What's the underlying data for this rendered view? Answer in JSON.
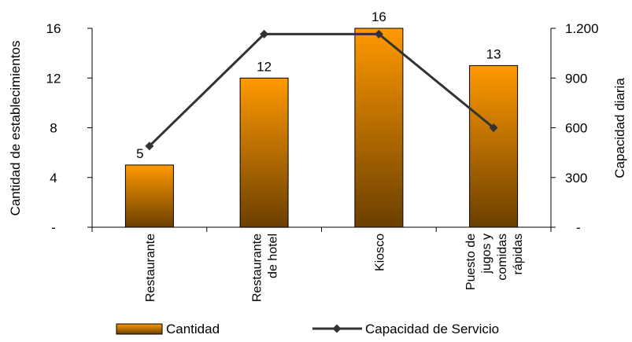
{
  "chart_data": {
    "type": "bar",
    "title": "",
    "categories": [
      [
        "Restaurante"
      ],
      [
        "Restaurante",
        "de hotel"
      ],
      [
        "Kiosco"
      ],
      [
        "Puesto de",
        "jugos y",
        "comidas",
        "rápidas"
      ]
    ],
    "series": [
      {
        "name": "Cantidad",
        "type": "bar",
        "axis": "left",
        "values": [
          5,
          12,
          16,
          13
        ],
        "data_labels": [
          "5",
          "12",
          "16",
          "13"
        ],
        "color_top": "#ff9900",
        "color_bottom": "#6b3f00"
      },
      {
        "name": "Capacidad de Servicio",
        "type": "line",
        "axis": "right",
        "values": [
          490,
          1165,
          1165,
          600
        ],
        "color": "#333333"
      }
    ],
    "y_left": {
      "label": "Cantidad de establecimientos",
      "min": 0,
      "max": 16,
      "ticks": [
        0,
        4,
        8,
        12,
        16
      ],
      "tick_labels": [
        "-",
        "4",
        "8",
        "12",
        "16"
      ]
    },
    "y_right": {
      "label": "Capacidad diaria",
      "min": 0,
      "max": 1200,
      "ticks": [
        0,
        300,
        600,
        900,
        1200
      ],
      "tick_labels": [
        "-",
        "300",
        "600",
        "900",
        "1.200"
      ]
    },
    "legend": {
      "position": "bottom",
      "items": [
        "Cantidad",
        "Capacidad de Servicio"
      ]
    },
    "grid": false
  }
}
